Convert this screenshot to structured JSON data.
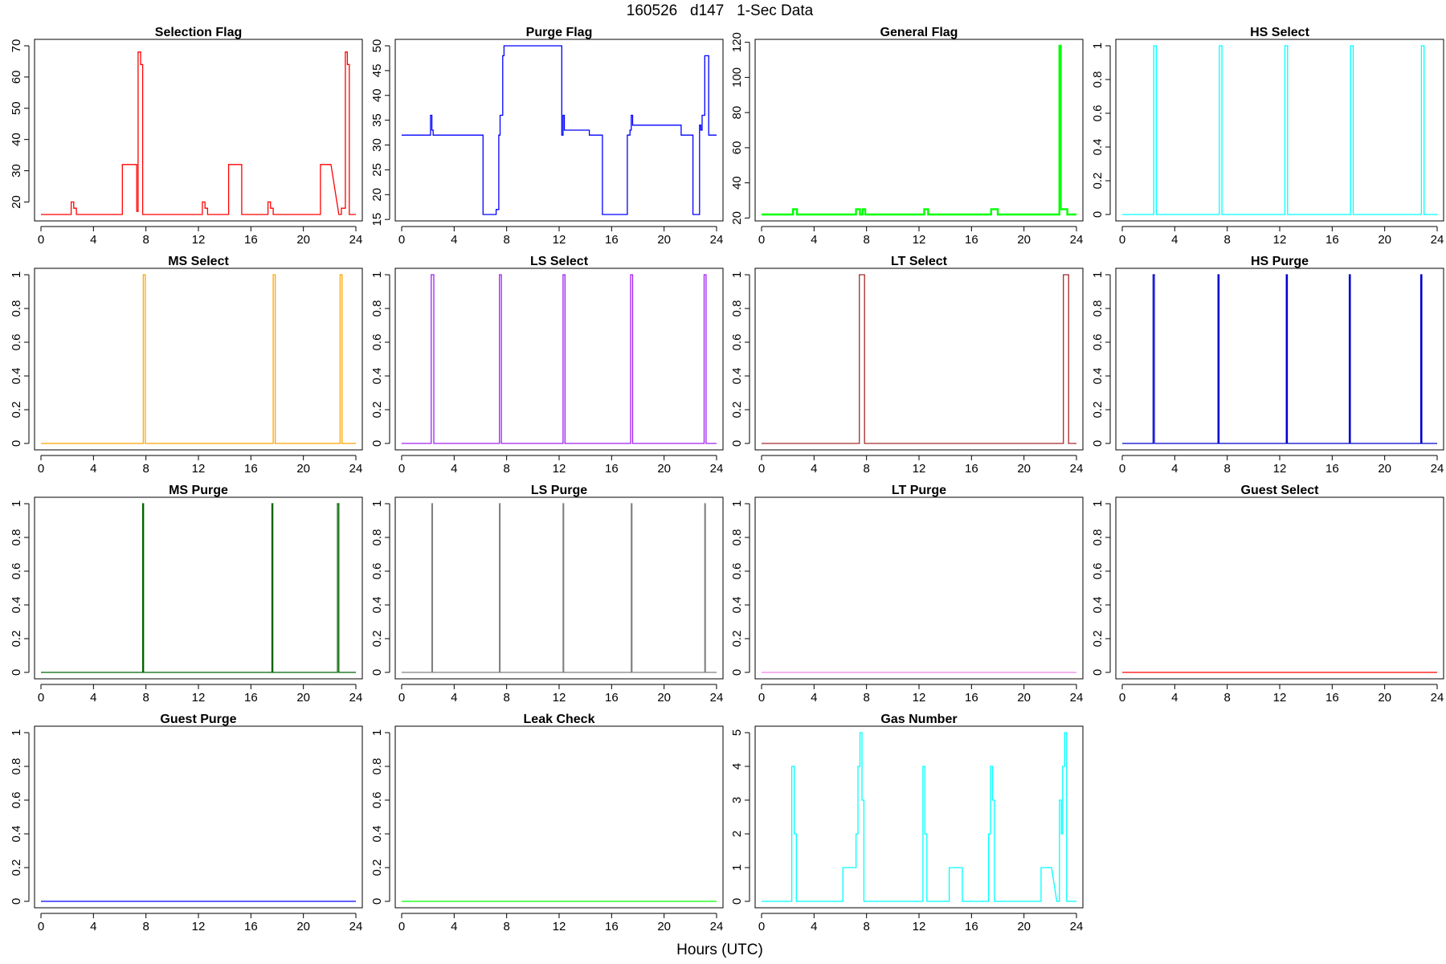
{
  "page": {
    "title": "160526   d147   1-Sec Data",
    "xlabel": "Hours (UTC)"
  },
  "chart_data": [
    {
      "type": "line",
      "title": "Selection Flag",
      "color": "#ff0000",
      "xlim": [
        0,
        24
      ],
      "ylim": [
        16,
        70
      ],
      "xticks": [
        0,
        4,
        8,
        12,
        16,
        20,
        24
      ],
      "yticks": [
        20,
        30,
        40,
        50,
        60,
        70
      ],
      "x": [
        0,
        2.3,
        2.3,
        2.5,
        2.5,
        2.7,
        2.7,
        6.2,
        6.2,
        7.3,
        7.3,
        7.4,
        7.4,
        7.6,
        7.6,
        7.75,
        7.75,
        7.9,
        7.9,
        12.3,
        12.3,
        12.5,
        12.5,
        12.7,
        12.7,
        14.3,
        14.3,
        15.3,
        15.3,
        17.3,
        17.3,
        17.5,
        17.5,
        17.7,
        17.7,
        21.3,
        21.3,
        22.1,
        22.7,
        22.9,
        22.9,
        23.1,
        23.1,
        23.2,
        23.2,
        23.35,
        23.35,
        23.5,
        23.5,
        24
      ],
      "y": [
        16,
        16,
        20,
        20,
        18,
        18,
        16,
        16,
        32,
        32,
        17,
        17,
        68,
        68,
        64,
        64,
        16,
        16,
        16,
        16,
        20,
        20,
        18,
        18,
        16,
        16,
        32,
        32,
        16,
        16,
        20,
        20,
        18,
        18,
        16,
        16,
        32,
        32,
        16,
        16,
        18,
        18,
        18,
        18,
        68,
        68,
        64,
        64,
        16,
        16
      ]
    },
    {
      "type": "line",
      "title": "Purge Flag",
      "color": "#0000ff",
      "xlim": [
        0,
        24
      ],
      "ylim": [
        16,
        50
      ],
      "xticks": [
        0,
        4,
        8,
        12,
        16,
        20,
        24
      ],
      "yticks": [
        15,
        20,
        25,
        30,
        35,
        40,
        45,
        50
      ],
      "x": [
        0,
        2.2,
        2.2,
        2.3,
        2.3,
        2.4,
        2.4,
        6.2,
        6.2,
        7.2,
        7.2,
        7.4,
        7.4,
        7.5,
        7.5,
        7.7,
        7.7,
        7.8,
        7.8,
        12.2,
        12.2,
        12.3,
        12.3,
        12.4,
        12.4,
        14.3,
        14.3,
        15.3,
        15.3,
        17.2,
        17.2,
        17.4,
        17.4,
        17.5,
        17.5,
        17.6,
        17.6,
        21.3,
        21.3,
        22.2,
        22.2,
        22.7,
        22.7,
        22.8,
        22.8,
        22.9,
        22.9,
        23.1,
        23.1,
        23.4,
        23.4,
        24
      ],
      "y": [
        32,
        32,
        36,
        36,
        33,
        33,
        32,
        32,
        16,
        16,
        17,
        17,
        32,
        32,
        36,
        36,
        48,
        48,
        50,
        50,
        32,
        32,
        36,
        36,
        33,
        33,
        32,
        32,
        16,
        16,
        32,
        32,
        33,
        33,
        36,
        36,
        34,
        34,
        32,
        32,
        16,
        16,
        34,
        34,
        33,
        33,
        36,
        36,
        48,
        48,
        32,
        32
      ]
    },
    {
      "type": "line",
      "title": "General Flag",
      "color": "#00ff00",
      "xlim": [
        0,
        24
      ],
      "ylim": [
        22,
        118
      ],
      "xticks": [
        0,
        4,
        8,
        12,
        16,
        20,
        24
      ],
      "yticks": [
        20,
        40,
        60,
        80,
        100,
        120
      ],
      "x": [
        0,
        2.4,
        2.4,
        2.7,
        2.7,
        7.2,
        7.2,
        7.5,
        7.5,
        7.7,
        7.7,
        7.9,
        7.9,
        12.4,
        12.4,
        12.7,
        12.7,
        17.5,
        17.5,
        18,
        18,
        22.7,
        22.7,
        22.8,
        22.8,
        23.3,
        23.3,
        24
      ],
      "y": [
        22,
        22,
        25,
        25,
        22,
        22,
        25,
        25,
        22,
        22,
        25,
        25,
        22,
        22,
        25,
        25,
        22,
        22,
        25,
        25,
        22,
        22,
        118,
        118,
        25,
        25,
        22,
        22
      ]
    },
    {
      "type": "line",
      "title": "HS Select",
      "color": "#00ffff",
      "xlim": [
        0,
        24
      ],
      "ylim": [
        0,
        1
      ],
      "xticks": [
        0,
        4,
        8,
        12,
        16,
        20,
        24
      ],
      "yticks": [
        0,
        0.2,
        0.4,
        0.6,
        0.8,
        1
      ],
      "x": [
        0,
        2.4,
        2.4,
        2.6,
        2.6,
        7.4,
        7.4,
        7.6,
        7.6,
        12.4,
        12.4,
        12.6,
        12.6,
        17.4,
        17.4,
        17.6,
        17.6,
        22.8,
        22.8,
        23,
        23,
        24
      ],
      "y": [
        0,
        0,
        1,
        1,
        0,
        0,
        1,
        1,
        0,
        0,
        1,
        1,
        0,
        0,
        1,
        1,
        0,
        0,
        1,
        1,
        0,
        0
      ]
    },
    {
      "type": "line",
      "title": "MS Select",
      "color": "#ffa500",
      "xlim": [
        0,
        24
      ],
      "ylim": [
        0,
        1
      ],
      "xticks": [
        0,
        4,
        8,
        12,
        16,
        20,
        24
      ],
      "yticks": [
        0,
        0.2,
        0.4,
        0.6,
        0.8,
        1
      ],
      "x": [
        0,
        7.8,
        7.8,
        7.95,
        7.95,
        17.7,
        17.7,
        17.85,
        17.85,
        22.8,
        22.8,
        22.95,
        22.95,
        24
      ],
      "y": [
        0,
        0,
        1,
        1,
        0,
        0,
        1,
        1,
        0,
        0,
        1,
        1,
        0,
        0
      ]
    },
    {
      "type": "line",
      "title": "LS Select",
      "color": "#a020f0",
      "xlim": [
        0,
        24
      ],
      "ylim": [
        0,
        1
      ],
      "xticks": [
        0,
        4,
        8,
        12,
        16,
        20,
        24
      ],
      "yticks": [
        0,
        0.2,
        0.4,
        0.6,
        0.8,
        1
      ],
      "x": [
        0,
        2.25,
        2.25,
        2.45,
        2.45,
        7.45,
        7.45,
        7.6,
        7.6,
        12.3,
        12.3,
        12.45,
        12.45,
        17.45,
        17.45,
        17.6,
        17.6,
        23.05,
        23.05,
        23.2,
        23.2,
        24
      ],
      "y": [
        0,
        0,
        1,
        1,
        0,
        0,
        1,
        1,
        0,
        0,
        1,
        1,
        0,
        0,
        1,
        1,
        0,
        0,
        1,
        1,
        0,
        0
      ]
    },
    {
      "type": "line",
      "title": "LT Select",
      "color": "#a52a2a",
      "xlim": [
        0,
        24
      ],
      "ylim": [
        0,
        1
      ],
      "xticks": [
        0,
        4,
        8,
        12,
        16,
        20,
        24
      ],
      "yticks": [
        0,
        0.2,
        0.4,
        0.6,
        0.8,
        1
      ],
      "x": [
        0,
        7.45,
        7.45,
        7.85,
        7.85,
        23.0,
        23.0,
        23.4,
        23.4,
        24
      ],
      "y": [
        0,
        0,
        1,
        1,
        0,
        0,
        1,
        1,
        0,
        0
      ]
    },
    {
      "type": "line",
      "title": "HS Purge",
      "color": "#0000cd",
      "xlim": [
        0,
        24
      ],
      "ylim": [
        0,
        1
      ],
      "xticks": [
        0,
        4,
        8,
        12,
        16,
        20,
        24
      ],
      "yticks": [
        0,
        0.2,
        0.4,
        0.6,
        0.8,
        1
      ],
      "x": [
        0,
        2.35,
        2.35,
        2.45,
        2.45,
        7.3,
        7.3,
        7.38,
        7.38,
        12.5,
        12.5,
        12.58,
        12.58,
        17.3,
        17.3,
        17.38,
        17.38,
        22.75,
        22.75,
        22.83,
        22.83,
        24
      ],
      "y": [
        0,
        0,
        1,
        1,
        0,
        0,
        1,
        1,
        0,
        0,
        1,
        1,
        0,
        0,
        1,
        1,
        0,
        0,
        1,
        1,
        0,
        0
      ]
    },
    {
      "type": "line",
      "title": "MS Purge",
      "color": "#006400",
      "xlim": [
        0,
        24
      ],
      "ylim": [
        0,
        1
      ],
      "xticks": [
        0,
        4,
        8,
        12,
        16,
        20,
        24
      ],
      "yticks": [
        0,
        0.2,
        0.4,
        0.6,
        0.8,
        1
      ],
      "x": [
        0,
        7.75,
        7.75,
        7.82,
        7.82,
        17.6,
        17.6,
        17.67,
        17.67,
        22.6,
        22.6,
        22.7,
        22.7,
        24
      ],
      "y": [
        0,
        0,
        1,
        1,
        0,
        0,
        1,
        1,
        0,
        0,
        1,
        1,
        0,
        0
      ]
    },
    {
      "type": "line",
      "title": "LS Purge",
      "color": "#808080",
      "xlim": [
        0,
        24
      ],
      "ylim": [
        0,
        1
      ],
      "xticks": [
        0,
        4,
        8,
        12,
        16,
        20,
        24
      ],
      "yticks": [
        0,
        0.2,
        0.4,
        0.6,
        0.8,
        1
      ],
      "x": [
        0,
        2.3,
        2.3,
        2.35,
        2.35,
        7.45,
        7.45,
        7.5,
        7.5,
        12.3,
        12.3,
        12.35,
        12.35,
        17.5,
        17.5,
        17.55,
        17.55,
        23.1,
        23.1,
        23.15,
        23.15,
        24
      ],
      "y": [
        0,
        0,
        1,
        1,
        0,
        0,
        1,
        1,
        0,
        0,
        1,
        1,
        0,
        0,
        1,
        1,
        0,
        0,
        1,
        1,
        0,
        0
      ]
    },
    {
      "type": "line",
      "title": "LT Purge",
      "color": "#ee82ee",
      "xlim": [
        0,
        24
      ],
      "ylim": [
        0,
        1
      ],
      "xticks": [
        0,
        4,
        8,
        12,
        16,
        20,
        24
      ],
      "yticks": [
        0,
        0.2,
        0.4,
        0.6,
        0.8,
        1
      ],
      "x": [
        0,
        24
      ],
      "y": [
        0,
        0
      ]
    },
    {
      "type": "line",
      "title": "Guest Select",
      "color": "#ff0000",
      "xlim": [
        0,
        24
      ],
      "ylim": [
        0,
        1
      ],
      "xticks": [
        0,
        4,
        8,
        12,
        16,
        20,
        24
      ],
      "yticks": [
        0,
        0.2,
        0.4,
        0.6,
        0.8,
        1
      ],
      "x": [
        0,
        24
      ],
      "y": [
        0,
        0
      ]
    },
    {
      "type": "line",
      "title": "Guest Purge",
      "color": "#0000ff",
      "xlim": [
        0,
        24
      ],
      "ylim": [
        0,
        1
      ],
      "xticks": [
        0,
        4,
        8,
        12,
        16,
        20,
        24
      ],
      "yticks": [
        0,
        0.2,
        0.4,
        0.6,
        0.8,
        1
      ],
      "x": [
        0,
        24
      ],
      "y": [
        0,
        0
      ]
    },
    {
      "type": "line",
      "title": "Leak Check",
      "color": "#00ff00",
      "xlim": [
        0,
        24
      ],
      "ylim": [
        0,
        1
      ],
      "xticks": [
        0,
        4,
        8,
        12,
        16,
        20,
        24
      ],
      "yticks": [
        0,
        0.2,
        0.4,
        0.6,
        0.8,
        1
      ],
      "x": [
        0,
        24
      ],
      "y": [
        0,
        0
      ]
    },
    {
      "type": "line",
      "title": "Gas Number",
      "color": "#00ffff",
      "xlim": [
        0,
        24
      ],
      "ylim": [
        0,
        5
      ],
      "xticks": [
        0,
        4,
        8,
        12,
        16,
        20,
        24
      ],
      "yticks": [
        0,
        1,
        2,
        3,
        4,
        5
      ],
      "x": [
        0,
        2.3,
        2.3,
        2.5,
        2.5,
        2.65,
        2.65,
        6.2,
        6.2,
        7.2,
        7.2,
        7.35,
        7.35,
        7.5,
        7.5,
        7.65,
        7.65,
        7.8,
        7.8,
        7.95,
        7.95,
        12.3,
        12.3,
        12.45,
        12.45,
        12.6,
        12.6,
        14.3,
        14.3,
        15.3,
        15.3,
        17.3,
        17.3,
        17.45,
        17.45,
        17.6,
        17.6,
        17.75,
        17.75,
        21.3,
        21.3,
        22.1,
        22.5,
        22.7,
        22.7,
        22.85,
        22.85,
        22.95,
        22.95,
        23.1,
        23.1,
        23.25,
        23.25,
        23.4,
        23.4,
        24
      ],
      "y": [
        0,
        0,
        4,
        4,
        2,
        2,
        0,
        0,
        1,
        1,
        2,
        2,
        4,
        4,
        5,
        5,
        3,
        3,
        0,
        0,
        0,
        0,
        4,
        4,
        2,
        2,
        0,
        0,
        1,
        1,
        0,
        0,
        2,
        2,
        4,
        4,
        3,
        3,
        0,
        0,
        1,
        1,
        0,
        0,
        3,
        3,
        2,
        2,
        4,
        4,
        5,
        5,
        0,
        0,
        0,
        0
      ]
    }
  ]
}
